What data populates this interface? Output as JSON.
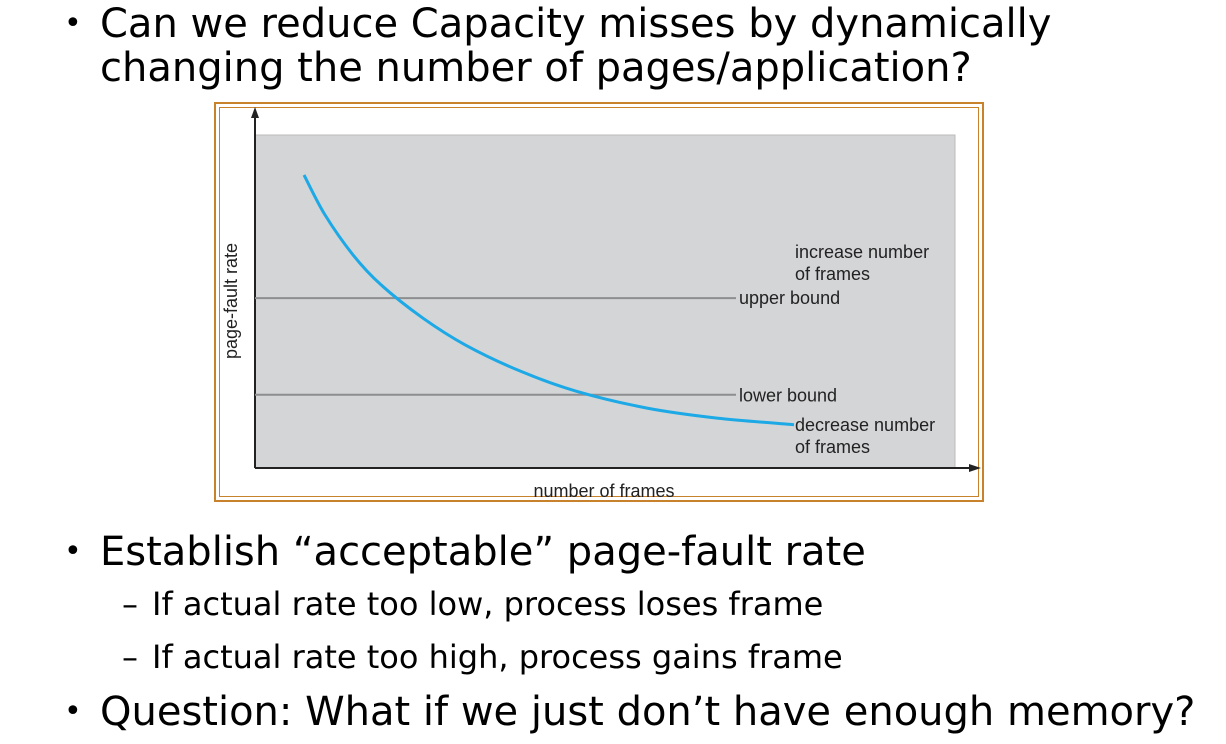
{
  "slide": {
    "bullet1": "Can we reduce Capacity misses by dynamically changing the number of pages/application?",
    "bullet2": "Establish “acceptable” page-fault rate",
    "sub1": "If actual rate too low, process loses frame",
    "sub2": "If actual rate too high, process gains frame",
    "bullet3": "Question: What if we just don’t have enough memory?",
    "bullet_glyph": "•",
    "dash_glyph": "–"
  },
  "chart_data": {
    "type": "line",
    "xlabel": "number of frames",
    "ylabel": "page-fault rate",
    "series": [
      {
        "values": [
          [
            0.07,
            0.88
          ],
          [
            0.1,
            0.76
          ],
          [
            0.14,
            0.64
          ],
          [
            0.18,
            0.55
          ],
          [
            0.24,
            0.45
          ],
          [
            0.3,
            0.37
          ],
          [
            0.38,
            0.29
          ],
          [
            0.46,
            0.23
          ],
          [
            0.56,
            0.18
          ],
          [
            0.66,
            0.15
          ],
          [
            0.77,
            0.13
          ]
        ]
      }
    ],
    "upper_bound": {
      "y": 0.51,
      "label": "upper bound"
    },
    "lower_bound": {
      "y": 0.22,
      "label": "lower bound"
    },
    "annotations": {
      "increase_1": "increase number",
      "increase_2": "of frames",
      "decrease_1": "decrease number",
      "decrease_2": "of frames"
    },
    "xlim": [
      0,
      1
    ],
    "ylim": [
      0,
      1
    ],
    "grid": false,
    "colors": {
      "curve": "#1ca9e6",
      "plot_bg": "#d4d5d7",
      "bound_line": "#8d8e90",
      "frame": "#c8822c"
    }
  }
}
